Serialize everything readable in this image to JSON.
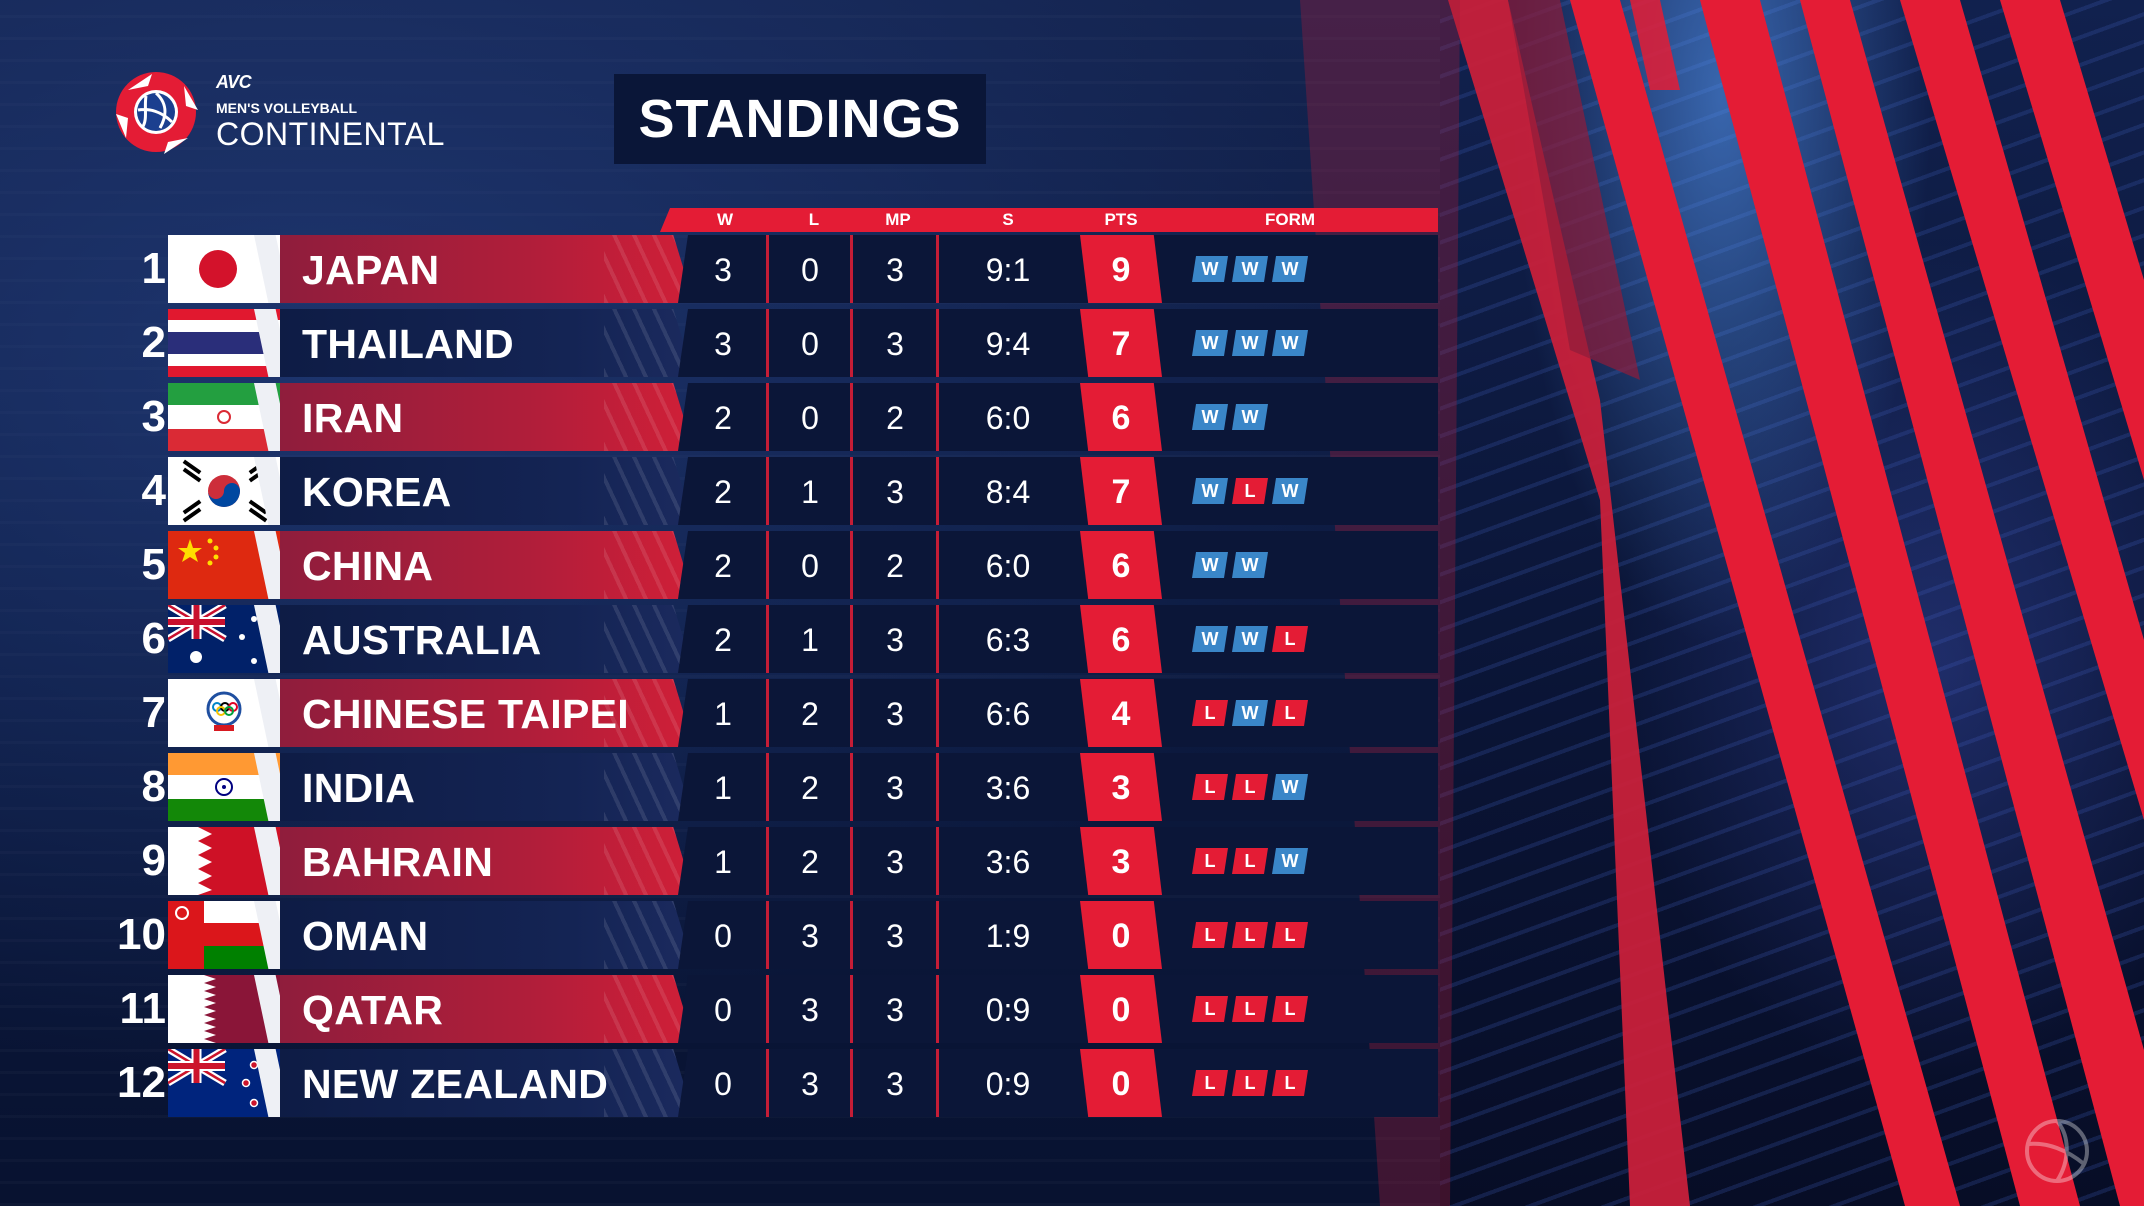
{
  "logo": {
    "avc": "AVC",
    "subtitle": "MEN'S VOLLEYBALL",
    "title": "CONTINENTAL"
  },
  "title": "STANDINGS",
  "columns": {
    "w": "W",
    "l": "L",
    "mp": "MP",
    "s": "S",
    "pts": "PTS",
    "form": "FORM"
  },
  "colors": {
    "accent_red": "#e41c35",
    "navy": "#0b1638",
    "win_blue": "#3a86c8"
  },
  "standings": [
    {
      "rank": "1",
      "team": "JAPAN",
      "flag": "japan-flag",
      "w": "3",
      "l": "0",
      "mp": "3",
      "s": "9:1",
      "pts": "9",
      "form": [
        "W",
        "W",
        "W"
      ]
    },
    {
      "rank": "2",
      "team": "THAILAND",
      "flag": "thailand-flag",
      "w": "3",
      "l": "0",
      "mp": "3",
      "s": "9:4",
      "pts": "7",
      "form": [
        "W",
        "W",
        "W"
      ]
    },
    {
      "rank": "3",
      "team": "IRAN",
      "flag": "iran-flag",
      "w": "2",
      "l": "0",
      "mp": "2",
      "s": "6:0",
      "pts": "6",
      "form": [
        "W",
        "W"
      ]
    },
    {
      "rank": "4",
      "team": "KOREA",
      "flag": "korea-flag",
      "w": "2",
      "l": "1",
      "mp": "3",
      "s": "8:4",
      "pts": "7",
      "form": [
        "W",
        "L",
        "W"
      ]
    },
    {
      "rank": "5",
      "team": "CHINA",
      "flag": "china-flag",
      "w": "2",
      "l": "0",
      "mp": "2",
      "s": "6:0",
      "pts": "6",
      "form": [
        "W",
        "W"
      ]
    },
    {
      "rank": "6",
      "team": "AUSTRALIA",
      "flag": "australia-flag",
      "w": "2",
      "l": "1",
      "mp": "3",
      "s": "6:3",
      "pts": "6",
      "form": [
        "W",
        "W",
        "L"
      ]
    },
    {
      "rank": "7",
      "team": "CHINESE TAIPEI",
      "flag": "chinese-taipei-flag",
      "w": "1",
      "l": "2",
      "mp": "3",
      "s": "6:6",
      "pts": "4",
      "form": [
        "L",
        "W",
        "L"
      ]
    },
    {
      "rank": "8",
      "team": "INDIA",
      "flag": "india-flag",
      "w": "1",
      "l": "2",
      "mp": "3",
      "s": "3:6",
      "pts": "3",
      "form": [
        "L",
        "L",
        "W"
      ]
    },
    {
      "rank": "9",
      "team": "BAHRAIN",
      "flag": "bahrain-flag",
      "w": "1",
      "l": "2",
      "mp": "3",
      "s": "3:6",
      "pts": "3",
      "form": [
        "L",
        "L",
        "W"
      ]
    },
    {
      "rank": "10",
      "team": "OMAN",
      "flag": "oman-flag",
      "w": "0",
      "l": "3",
      "mp": "3",
      "s": "1:9",
      "pts": "0",
      "form": [
        "L",
        "L",
        "L"
      ]
    },
    {
      "rank": "11",
      "team": "QATAR",
      "flag": "qatar-flag",
      "w": "0",
      "l": "3",
      "mp": "3",
      "s": "0:9",
      "pts": "0",
      "form": [
        "L",
        "L",
        "L"
      ]
    },
    {
      "rank": "12",
      "team": "NEW ZEALAND",
      "flag": "new-zealand-flag",
      "w": "0",
      "l": "3",
      "mp": "3",
      "s": "0:9",
      "pts": "0",
      "form": [
        "L",
        "L",
        "L"
      ]
    }
  ]
}
